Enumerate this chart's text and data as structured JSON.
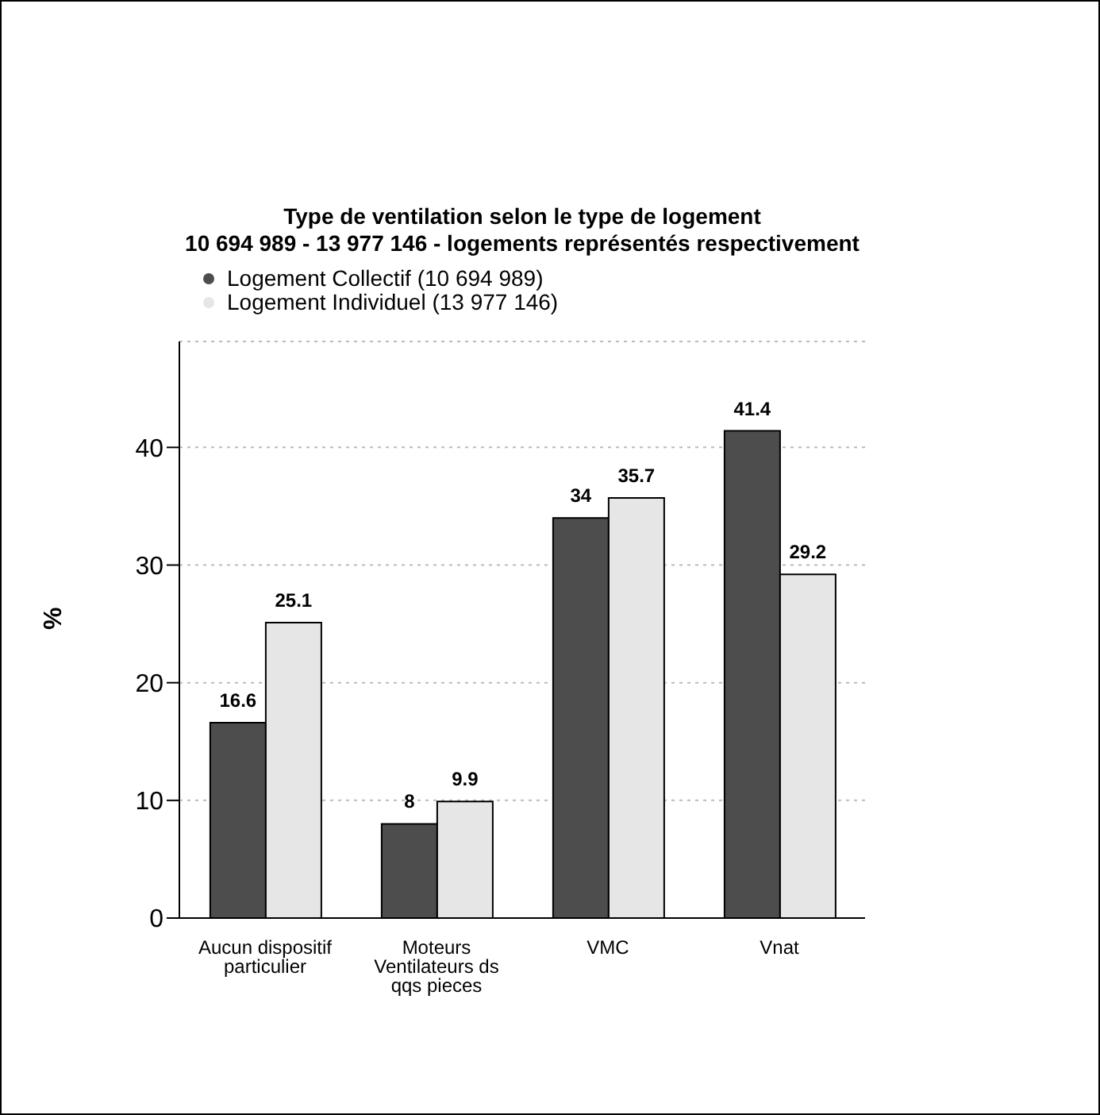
{
  "chart_data": {
    "type": "bar",
    "title": "Type de ventilation selon le type de logement",
    "subtitle": "10 694 989 - 13 977 146 - logements représentés respectivement",
    "ylabel": "%",
    "categories": [
      "Aucun dispositif particulier",
      "Moteurs Ventilateurs ds qqs pieces",
      "VMC",
      "Vnat"
    ],
    "series": [
      {
        "name": "Logement Collectif (10 694 989)",
        "color": "#4d4d4d",
        "values": [
          16.6,
          8,
          34,
          41.4
        ]
      },
      {
        "name": "Logement Individuel (13 977 146)",
        "color": "#e6e6e6",
        "values": [
          25.1,
          9.9,
          35.7,
          29.2
        ]
      }
    ],
    "ylim": [
      0,
      49
    ],
    "yticks": [
      0,
      10,
      20,
      30,
      40
    ],
    "grid": "y",
    "legend": "top left",
    "data_labels": true
  }
}
